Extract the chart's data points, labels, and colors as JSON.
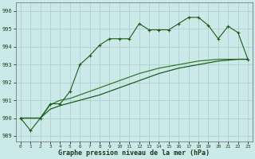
{
  "line1": [
    990.0,
    989.3,
    990.0,
    990.8,
    990.8,
    991.5,
    993.0,
    993.5,
    994.1,
    994.45,
    994.45,
    994.45,
    995.3,
    994.95,
    994.95,
    994.95,
    995.3,
    995.65,
    995.65,
    995.2,
    994.45,
    995.15,
    994.8,
    993.3
  ],
  "line2": [
    990.0,
    990.0,
    990.0,
    990.75,
    991.0,
    991.1,
    991.3,
    991.5,
    991.7,
    991.9,
    992.1,
    992.3,
    992.5,
    992.65,
    992.8,
    992.9,
    993.0,
    993.1,
    993.2,
    993.25,
    993.3,
    993.3,
    993.3,
    993.3
  ],
  "line3": [
    990.0,
    990.0,
    990.0,
    990.5,
    990.7,
    990.85,
    991.0,
    991.15,
    991.3,
    991.5,
    991.7,
    991.9,
    992.1,
    992.3,
    992.5,
    992.65,
    992.8,
    992.9,
    993.0,
    993.1,
    993.2,
    993.25,
    993.3,
    993.3
  ],
  "color_line1": "#1a5c1a",
  "color_line2": "#2d7a2d",
  "color_line3": "#1a5c1a",
  "bg_color": "#cce9e9",
  "grid_color": "#aacccc",
  "xlabel": "Graphe pression niveau de la mer (hPa)",
  "yticks": [
    989,
    990,
    991,
    992,
    993,
    994,
    995,
    996
  ],
  "xtick_labels": [
    "0",
    "1",
    "2",
    "3",
    "4",
    "5",
    "6",
    "7",
    "8",
    "9",
    "10",
    "11",
    "12",
    "13",
    "14",
    "15",
    "16",
    "17",
    "18",
    "19",
    "20",
    "21",
    "22",
    "23"
  ],
  "ylim": [
    988.7,
    996.5
  ],
  "xlim": [
    -0.5,
    23.5
  ]
}
